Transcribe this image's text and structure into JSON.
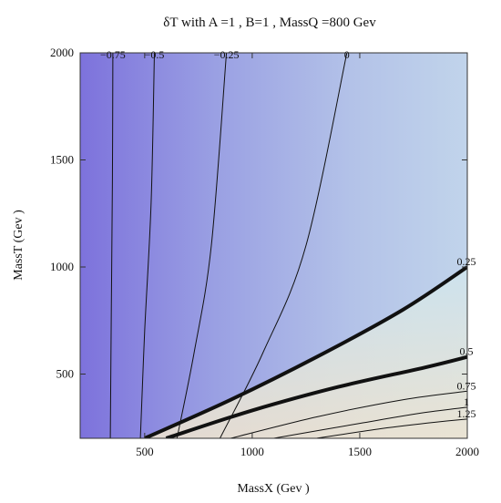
{
  "chart_data": {
    "type": "contour",
    "title": "δT   with   A =1 , B=1 , MassQ =800  Gev",
    "xlabel": "MassX (Gev )",
    "ylabel": "MassT (Gev )",
    "xlim": [
      200,
      2000
    ],
    "ylim": [
      200,
      2000
    ],
    "x_ticks": [
      500,
      1000,
      1500,
      2000
    ],
    "y_ticks": [
      500,
      1000,
      1500,
      2000
    ],
    "grid": false,
    "contours": [
      {
        "level": -0.75,
        "label": "−0.75",
        "bold": false,
        "points": [
          [
            340,
            200
          ],
          [
            345,
            800
          ],
          [
            350,
            1400
          ],
          [
            352,
            2000
          ]
        ]
      },
      {
        "level": -0.5,
        "label": "−0.5",
        "bold": false,
        "points": [
          [
            480,
            200
          ],
          [
            500,
            700
          ],
          [
            530,
            1300
          ],
          [
            545,
            2000
          ]
        ]
      },
      {
        "level": -0.25,
        "label": "−0.25",
        "bold": false,
        "points": [
          [
            650,
            200
          ],
          [
            730,
            600
          ],
          [
            810,
            1100
          ],
          [
            880,
            2000
          ]
        ]
      },
      {
        "level": 0,
        "label": "0",
        "bold": false,
        "points": [
          [
            850,
            200
          ],
          [
            1050,
            600
          ],
          [
            1250,
            1100
          ],
          [
            1440,
            2000
          ]
        ]
      },
      {
        "level": 0.25,
        "label": "0.25",
        "bold": true,
        "points": [
          [
            500,
            200
          ],
          [
            900,
            380
          ],
          [
            1300,
            580
          ],
          [
            1700,
            800
          ],
          [
            2000,
            1000
          ]
        ]
      },
      {
        "level": 0.5,
        "label": "0.5",
        "bold": true,
        "points": [
          [
            600,
            200
          ],
          [
            1000,
            330
          ],
          [
            1400,
            440
          ],
          [
            1800,
            530
          ],
          [
            2000,
            580
          ]
        ]
      },
      {
        "level": 0.75,
        "label": "0.75",
        "bold": false,
        "points": [
          [
            900,
            200
          ],
          [
            1300,
            300
          ],
          [
            1700,
            380
          ],
          [
            2000,
            420
          ]
        ]
      },
      {
        "level": 1,
        "label": "1",
        "bold": false,
        "points": [
          [
            1100,
            200
          ],
          [
            1500,
            270
          ],
          [
            1800,
            320
          ],
          [
            2000,
            345
          ]
        ]
      },
      {
        "level": 1.25,
        "label": "1.25",
        "bold": false,
        "points": [
          [
            1300,
            200
          ],
          [
            1600,
            245
          ],
          [
            1850,
            275
          ],
          [
            2000,
            290
          ]
        ]
      }
    ],
    "colors": {
      "low": "#7e74dc",
      "mid": "#a9b3e6",
      "high": "#d8e9ef",
      "peak": "#efe6d0",
      "line": "#111111"
    }
  }
}
